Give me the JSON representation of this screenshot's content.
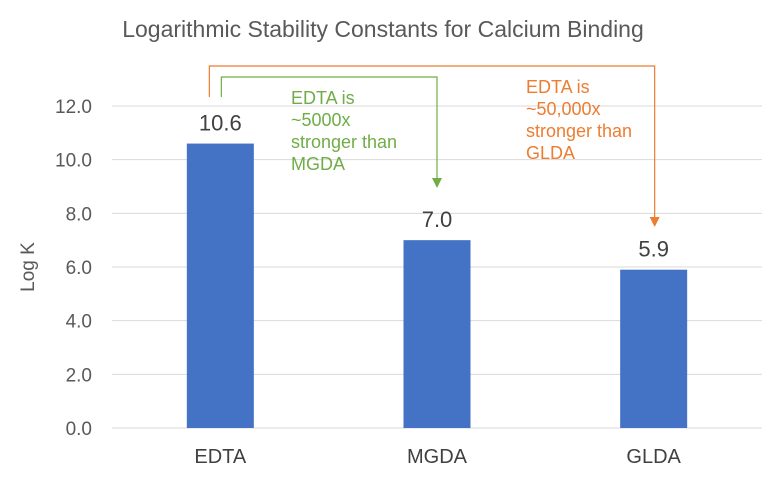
{
  "chart_data": {
    "type": "bar",
    "title": "Logarithmic Stability Constants for Calcium Binding",
    "xlabel": "",
    "ylabel": "Log K",
    "categories": [
      "EDTA",
      "MGDA",
      "GLDA"
    ],
    "values": [
      10.6,
      7.0,
      5.9
    ],
    "data_labels": [
      "10.6",
      "7.0",
      "5.9"
    ],
    "ylim": [
      0,
      12
    ],
    "yticks": [
      "0.0",
      "2.0",
      "4.0",
      "6.0",
      "8.0",
      "10.0",
      "12.0"
    ],
    "grid": true,
    "legend": "none",
    "colors": {
      "bar": "#4472C4",
      "grid": "#D9D9D9",
      "ann_green": "#70AD47",
      "ann_orange": "#ED7D31"
    },
    "annotations": [
      {
        "from": "EDTA",
        "to": "MGDA",
        "color": "#70AD47",
        "lines": [
          "EDTA is",
          "~5000x",
          "stronger than",
          "MGDA"
        ]
      },
      {
        "from": "EDTA",
        "to": "GLDA",
        "color": "#ED7D31",
        "lines": [
          "EDTA is",
          "~50,000x",
          "stronger than",
          "GLDA"
        ]
      }
    ]
  }
}
